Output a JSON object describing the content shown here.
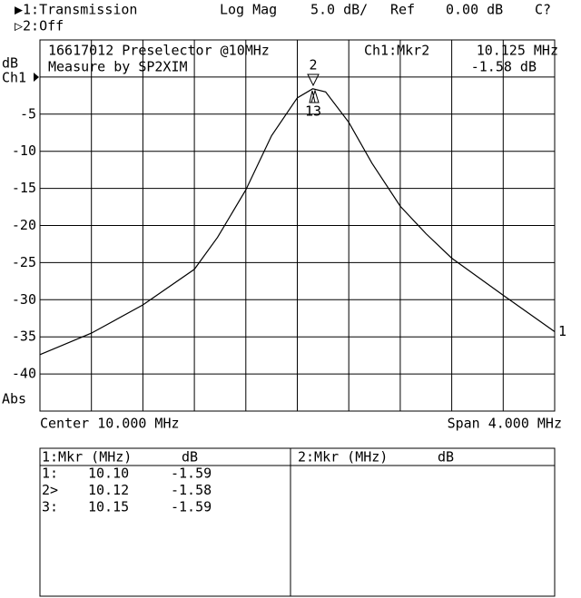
{
  "header": {
    "trace1": "▶1:Transmission",
    "format": "Log Mag",
    "scale": "5.0 dB/",
    "ref_label": "Ref",
    "ref_value": "0.00 dB",
    "cal": "C?",
    "trace2": "▷2:Off"
  },
  "chart_data": {
    "type": "line",
    "title_lines": [
      "16617012 Preselector @10MHz",
      "Measure by SP2XIM"
    ],
    "marker_readout": {
      "label": "Ch1:Mkr2",
      "freq": "10.125 MHz",
      "value": "-1.58 dB"
    },
    "y_unit": "dB",
    "channel": "Ch1",
    "y_format": "Abs",
    "center": "Center 10.000 MHz",
    "span": "Span 4.000 MHz",
    "annotations": [
      "2",
      "13"
    ],
    "x": [
      8.0,
      8.4,
      8.8,
      9.2,
      9.38,
      9.6,
      9.8,
      10.0,
      10.12,
      10.22,
      10.4,
      10.58,
      10.8,
      11.0,
      11.2,
      11.6,
      12.0
    ],
    "series": [
      {
        "name": "1",
        "color": "#000000",
        "values": [
          -37.4,
          -34.5,
          -30.7,
          -25.9,
          -21.6,
          -15.2,
          -7.9,
          -2.8,
          -1.58,
          -2.0,
          -6.1,
          -11.6,
          -17.4,
          -21.1,
          -24.4,
          -29.4,
          -34.3
        ]
      }
    ],
    "xlim": [
      8,
      12
    ],
    "xticks": [
      {
        "value": 8.4,
        "label": null
      },
      {
        "value": 8.8,
        "label": null
      },
      {
        "value": 9.2,
        "label": null
      },
      {
        "value": 9.6,
        "label": null
      },
      {
        "value": 10,
        "label": null
      },
      {
        "value": 10.4,
        "label": null
      },
      {
        "value": 10.8,
        "label": null
      },
      {
        "value": 11.2,
        "label": null
      },
      {
        "value": 11.6,
        "label": null
      }
    ],
    "ylim": [
      -45,
      5
    ],
    "yticks": [
      -40,
      -35,
      -30,
      -25,
      -20,
      -15,
      -10,
      -5,
      {
        "value": 0,
        "label": null
      }
    ],
    "grid": true
  },
  "marker_table": {
    "ch1": {
      "header": [
        "1:Mkr (MHz)",
        "dB"
      ],
      "rows": [
        [
          "1:",
          "10.10",
          "-1.59"
        ],
        [
          "2>",
          "10.12",
          "-1.58"
        ],
        [
          "3:",
          "10.15",
          "-1.59"
        ]
      ]
    },
    "ch2": {
      "header": [
        "2:Mkr (MHz)",
        "dB"
      ]
    }
  }
}
